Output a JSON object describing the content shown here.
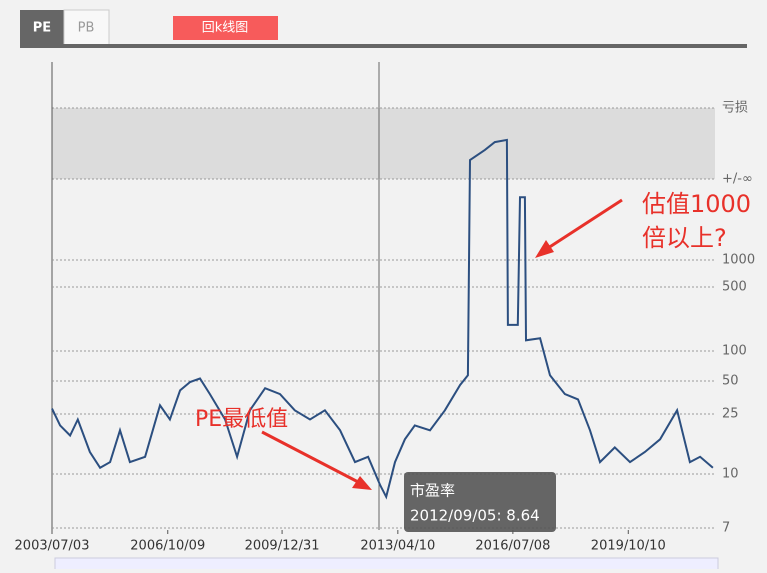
{
  "tabs": [
    "PE",
    "PB"
  ],
  "button": "回k线图",
  "chart_data": {
    "type": "line",
    "series": [
      {
        "name": "市盈率",
        "color": "#2c4f80",
        "x": [
          2003.5,
          2003.73,
          2004.01,
          2004.23,
          2004.57,
          2004.86,
          2005.14,
          2005.42,
          2005.7,
          2006.13,
          2006.55,
          2006.83,
          2007.12,
          2007.4,
          2007.68,
          2007.96,
          2008.39,
          2008.73,
          2009.09,
          2009.52,
          2009.94,
          2010.36,
          2010.79,
          2011.21,
          2011.64,
          2012.06,
          2012.43,
          2012.77,
          2012.94,
          2013.19,
          2013.47,
          2013.75,
          2014.18,
          2014.6,
          2015.03,
          2015.25,
          2015.31,
          2015.73,
          2016.01,
          2016.35,
          2016.38,
          2016.66,
          2016.72,
          2016.86,
          2016.89,
          2017.29,
          2017.57,
          2017.99,
          2018.36,
          2018.7,
          2018.98,
          2019.4,
          2019.83,
          2020.25,
          2020.68,
          2021.16,
          2021.52,
          2021.81,
          2022.17
        ],
        "values": [
          28,
          21,
          18,
          23,
          14,
          11,
          12,
          19.5,
          12,
          13,
          30,
          23,
          41,
          49,
          53,
          38,
          23,
          13,
          27,
          43,
          38,
          27,
          23,
          27,
          19.5,
          12,
          13,
          9.3,
          8.6,
          12,
          17,
          21,
          19.5,
          27,
          46,
          57,
          -850,
          -230,
          -83,
          -63,
          193,
          193,
          4900,
          4900,
          131,
          138,
          57,
          38,
          34,
          19.5,
          12,
          15,
          12,
          14,
          17,
          27,
          12,
          13,
          11
        ]
      }
    ],
    "xlim": [
      2003.5,
      2022.23
    ],
    "xticks": [
      {
        "value": 2003.5,
        "label": "2003/07/03"
      },
      {
        "value": 2006.77,
        "label": "2006/10/09"
      },
      {
        "value": 2010.0,
        "label": "2009/12/31"
      },
      {
        "value": 2013.27,
        "label": "2013/04/10"
      },
      {
        "value": 2016.52,
        "label": "2016/07/08"
      },
      {
        "value": 2019.78,
        "label": "2019/10/10"
      }
    ],
    "yticks": [
      7,
      10,
      25,
      50,
      100,
      500,
      1000
    ],
    "infinity_label": "+/-∞",
    "loss_label": "亏损",
    "tooltip": {
      "title": "市盈率",
      "text": "2012/09/05: 8.64"
    },
    "annotations": [
      "PE最低值",
      "估值1000",
      "倍以上?"
    ]
  }
}
